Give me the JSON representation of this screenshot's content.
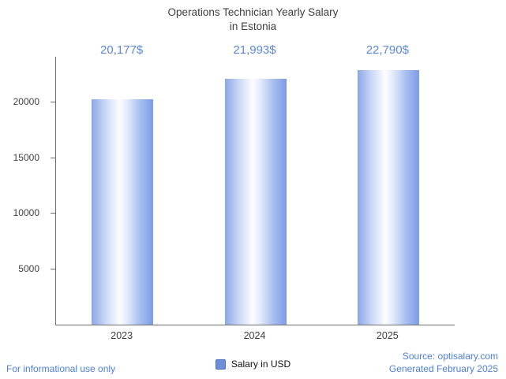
{
  "header": {
    "title_line1": "Operations Technician Yearly Salary",
    "title_line2": "in Estonia"
  },
  "chart_data": {
    "type": "bar",
    "title": "Operations Technician Yearly Salary in Estonia",
    "categories": [
      "2023",
      "2024",
      "2025"
    ],
    "values": [
      20177,
      21993,
      22790
    ],
    "value_labels": [
      "20,177$",
      "21,993$",
      "22,790$"
    ],
    "xlabel": "",
    "ylabel": "",
    "ylim": [
      0,
      24000
    ],
    "yticks": [
      5000,
      10000,
      15000,
      20000
    ],
    "legend": "Salary in USD",
    "legend_position": "bottom-center",
    "grid": false,
    "style": {
      "bar_color_left": "#8BA7E7",
      "bar_color_mid": "#FDFDFE",
      "bar_color_right": "#7D9BE5",
      "value_label_color": "#5c87da",
      "legend_swatch_color": "#6d90d8",
      "legend_swatch_border": "#4f72bd",
      "axis_color": "#6e6e6e",
      "axis_text_color": "#424242",
      "title_color": "#3f3f3f",
      "link_color": "#4d7fdb"
    }
  },
  "footer": {
    "left": "For informational use only",
    "source": "Source: optisalary.com",
    "generated": "Generated February 2025"
  }
}
